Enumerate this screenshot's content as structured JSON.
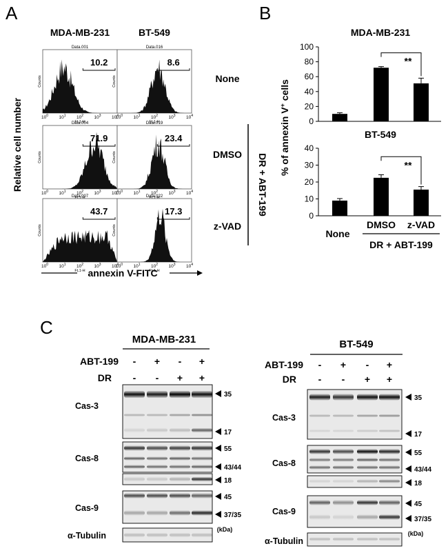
{
  "panel_letters": {
    "a": "A",
    "b": "B",
    "c": "C"
  },
  "panel_a": {
    "column_titles": [
      "MDA-MB-231",
      "BT-549"
    ],
    "row_labels": [
      "None",
      "DMSO",
      "z-VAD"
    ],
    "treatment_bracket_label": "DR + ABT-199",
    "y_axis_label": "Relative cell number",
    "x_axis_label": "annexin V-FITC",
    "histogram_counts_label": "Counts",
    "histogram_x_label": "FL1-H",
    "tick_base": "10",
    "tick_exponents": [
      "0",
      "1",
      "2",
      "3",
      "4"
    ],
    "histograms": [
      {
        "file": "Data.001",
        "percent": "10.2"
      },
      {
        "file": "Data.016",
        "percent": "8.6"
      },
      {
        "file": "Data.004",
        "percent": "71.9"
      },
      {
        "file": "Data.019",
        "percent": "23.4"
      },
      {
        "file": "Data.007",
        "percent": "43.7"
      },
      {
        "file": "Data.022",
        "percent": "17.3"
      }
    ]
  },
  "chart_data": [
    {
      "type": "bar",
      "title": "MDA-MB-231",
      "categories": [
        "None",
        "DMSO",
        "z-VAD"
      ],
      "values": [
        10,
        72,
        51
      ],
      "errors": [
        1.5,
        1.5,
        7
      ],
      "ylim": [
        0,
        100
      ],
      "yticks": [
        "0",
        "20",
        "40",
        "60",
        "80",
        "100"
      ],
      "significance": {
        "between": [
          "DMSO",
          "z-VAD"
        ],
        "label": "**"
      }
    },
    {
      "type": "bar",
      "title": "BT-549",
      "categories": [
        "None",
        "DMSO",
        "z-VAD"
      ],
      "values": [
        9,
        22.5,
        15.5
      ],
      "errors": [
        1.2,
        1.8,
        1.8
      ],
      "ylim": [
        0,
        40
      ],
      "yticks": [
        "0",
        "10",
        "20",
        "30",
        "40"
      ],
      "significance": {
        "between": [
          "DMSO",
          "z-VAD"
        ],
        "label": "**"
      }
    }
  ],
  "panel_b": {
    "y_axis_label_prefix": "% of annexin V",
    "y_axis_label_sup": "+",
    "y_axis_label_suffix": " cells",
    "group_label": "DR + ABT-199",
    "x_labels": [
      "None",
      "DMSO",
      "z-VAD"
    ]
  },
  "panel_c": {
    "blots": [
      {
        "cell_line": "MDA-MB-231",
        "abt199_label": "ABT-199",
        "dr_label": "DR",
        "abt199_row": [
          "-",
          "+",
          "-",
          "+"
        ],
        "dr_row": [
          "-",
          "-",
          "+",
          "+"
        ],
        "proteins": [
          "Cas-3",
          "Cas-8",
          "Cas-9",
          "α-Tubulin"
        ],
        "markers": [
          "35",
          "17",
          "55",
          "43/44",
          "18",
          "45",
          "37/35"
        ],
        "unit": "(kDa)"
      },
      {
        "cell_line": "BT-549",
        "abt199_label": "ABT-199",
        "dr_label": "DR",
        "abt199_row": [
          "-",
          "+",
          "-",
          "+"
        ],
        "dr_row": [
          "-",
          "-",
          "+",
          "+"
        ],
        "proteins": [
          "Cas-3",
          "Cas-8",
          "Cas-9",
          "α-Tubulin"
        ],
        "markers": [
          "35",
          "17",
          "55",
          "43/44",
          "18",
          "45",
          "37/35"
        ],
        "unit": "(kDa)"
      }
    ]
  }
}
